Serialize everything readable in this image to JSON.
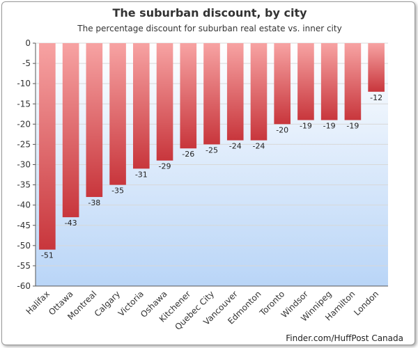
{
  "chart_data": {
    "type": "bar",
    "title": "The suburban discount, by city",
    "subtitle": "The percentage discount for suburban real estate vs. inner city",
    "categories": [
      "Halifax",
      "Ottawa",
      "Montreal",
      "Calgary",
      "Victoria",
      "Oshawa",
      "Kitchener",
      "Quebec City",
      "Vancouver",
      "Edmonton",
      "Toronto",
      "Windsor",
      "Winnipeg",
      "Hamilton",
      "London"
    ],
    "values": [
      -51,
      -43,
      -38,
      -35,
      -31,
      -29,
      -26,
      -25,
      -24,
      -24,
      -20,
      -19,
      -19,
      -19,
      -12
    ],
    "data_labels": [
      "-51",
      "-43",
      "-38",
      "-35",
      "-31",
      "-29",
      "-26",
      "-25",
      "-24",
      "-24",
      "-20",
      "-19",
      "-19",
      "-19",
      "-12"
    ],
    "y_ticks": [
      0,
      -5,
      -10,
      -15,
      -20,
      -25,
      -30,
      -35,
      -40,
      -45,
      -50,
      -55,
      -60
    ],
    "ylim": [
      -60,
      0
    ],
    "xlabel": "",
    "ylabel": "",
    "grid": true,
    "legend": "none",
    "colors": {
      "bar_top": "#f7a3a3",
      "bar_bottom": "#c8363c",
      "bg_top": "#ffffff",
      "bg_bottom": "#b9d5f7",
      "grid": "#d8d8d8",
      "text": "#333333"
    }
  },
  "credit": "Finder.com/HuffPost Canada"
}
